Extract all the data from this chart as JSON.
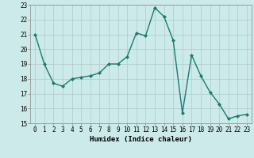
{
  "x": [
    0,
    1,
    2,
    3,
    4,
    5,
    6,
    7,
    8,
    9,
    10,
    11,
    12,
    13,
    14,
    15,
    16,
    17,
    18,
    19,
    20,
    21,
    22,
    23
  ],
  "y": [
    21.0,
    19.0,
    17.7,
    17.5,
    18.0,
    18.1,
    18.2,
    18.4,
    19.0,
    19.0,
    19.5,
    21.1,
    20.9,
    22.8,
    22.2,
    20.6,
    15.7,
    19.6,
    18.2,
    17.1,
    16.3,
    15.3,
    15.5,
    15.6
  ],
  "line_color": "#1a7a6e",
  "marker": "D",
  "marker_size": 2,
  "bg_color": "#cceaea",
  "grid_color": "#b0c8c8",
  "xlabel": "Humidex (Indice chaleur)",
  "ylim": [
    15,
    23
  ],
  "xlim": [
    -0.5,
    23.5
  ],
  "yticks": [
    15,
    16,
    17,
    18,
    19,
    20,
    21,
    22,
    23
  ],
  "xticks": [
    0,
    1,
    2,
    3,
    4,
    5,
    6,
    7,
    8,
    9,
    10,
    11,
    12,
    13,
    14,
    15,
    16,
    17,
    18,
    19,
    20,
    21,
    22,
    23
  ],
  "tick_fontsize": 5.5,
  "xlabel_fontsize": 6.5,
  "line_width": 1.0
}
